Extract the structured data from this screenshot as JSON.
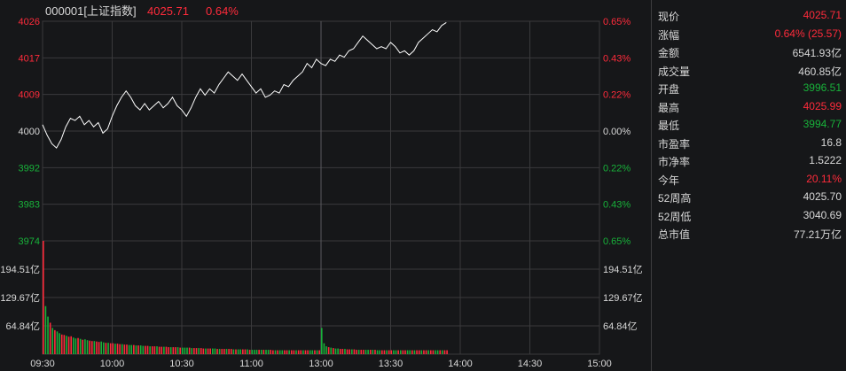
{
  "header": {
    "code_name": "000001[上证指数]",
    "price": "4025.71",
    "change_pct": "0.64%"
  },
  "colors": {
    "up": "#ff2b3b",
    "down": "#18b23a",
    "neutral": "#d8d8d8",
    "grid": "#3a3a3c",
    "line": "#ffffff"
  },
  "chart_data": {
    "type": "line",
    "price_axis": {
      "left_ticks": [
        "4026",
        "4017",
        "4009",
        "4000",
        "3992",
        "3983",
        "3974"
      ],
      "right_ticks": [
        "0.65%",
        "0.43%",
        "0.22%",
        "0.00%",
        "0.22%",
        "0.43%",
        "0.65%"
      ],
      "ylim": [
        3974,
        4026
      ],
      "prev_close": 4000
    },
    "volume_axis": {
      "ticks": [
        "194.51亿",
        "129.67亿",
        "64.84亿"
      ],
      "ylim": [
        0,
        259.35
      ]
    },
    "x_ticks": [
      "09:30",
      "10:00",
      "10:30",
      "11:00",
      "13:00",
      "13:30",
      "14:00",
      "14:30",
      "15:00"
    ],
    "session_minutes": 240,
    "price_series": [
      [
        0,
        4001.5
      ],
      [
        2,
        3999
      ],
      [
        4,
        3997
      ],
      [
        6,
        3996
      ],
      [
        8,
        3998
      ],
      [
        10,
        4001
      ],
      [
        12,
        4003
      ],
      [
        14,
        4002.5
      ],
      [
        16,
        4003.5
      ],
      [
        18,
        4001.5
      ],
      [
        20,
        4002.5
      ],
      [
        22,
        4001
      ],
      [
        24,
        4002
      ],
      [
        26,
        3999.5
      ],
      [
        28,
        4000.5
      ],
      [
        30,
        4003.5
      ],
      [
        32,
        4006
      ],
      [
        34,
        4008
      ],
      [
        36,
        4009.5
      ],
      [
        38,
        4008
      ],
      [
        40,
        4006
      ],
      [
        42,
        4005
      ],
      [
        44,
        4006.5
      ],
      [
        46,
        4005
      ],
      [
        48,
        4006
      ],
      [
        50,
        4007
      ],
      [
        52,
        4005.5
      ],
      [
        54,
        4006.5
      ],
      [
        56,
        4008
      ],
      [
        58,
        4006
      ],
      [
        60,
        4005
      ],
      [
        62,
        4003.5
      ],
      [
        64,
        4005.5
      ],
      [
        66,
        4008
      ],
      [
        68,
        4010
      ],
      [
        70,
        4008.5
      ],
      [
        72,
        4010
      ],
      [
        74,
        4009
      ],
      [
        76,
        4011
      ],
      [
        78,
        4012.5
      ],
      [
        80,
        4014
      ],
      [
        82,
        4013
      ],
      [
        84,
        4012
      ],
      [
        86,
        4013.5
      ],
      [
        88,
        4012
      ],
      [
        90,
        4010.5
      ],
      [
        92,
        4009
      ],
      [
        94,
        4010
      ],
      [
        96,
        4008
      ],
      [
        98,
        4008.5
      ],
      [
        100,
        4009.5
      ],
      [
        102,
        4009
      ],
      [
        104,
        4011
      ],
      [
        106,
        4010.5
      ],
      [
        108,
        4012
      ],
      [
        110,
        4013
      ],
      [
        112,
        4014
      ],
      [
        114,
        4016
      ],
      [
        116,
        4015
      ],
      [
        118,
        4017
      ],
      [
        120,
        4016
      ],
      [
        122,
        4015.5
      ],
      [
        124,
        4017
      ],
      [
        126,
        4016.5
      ],
      [
        128,
        4018
      ],
      [
        130,
        4017.5
      ],
      [
        132,
        4019
      ],
      [
        134,
        4019.5
      ],
      [
        136,
        4021
      ],
      [
        138,
        4022.5
      ],
      [
        140,
        4021.5
      ],
      [
        142,
        4020.5
      ],
      [
        144,
        4019.5
      ],
      [
        146,
        4020
      ],
      [
        148,
        4019.5
      ],
      [
        150,
        4021
      ],
      [
        152,
        4020
      ],
      [
        154,
        4018.5
      ],
      [
        156,
        4019
      ],
      [
        158,
        4018
      ],
      [
        160,
        4019
      ],
      [
        162,
        4021
      ],
      [
        164,
        4022
      ],
      [
        166,
        4023
      ],
      [
        168,
        4024
      ],
      [
        170,
        4023.5
      ],
      [
        172,
        4025
      ],
      [
        174,
        4025.7
      ]
    ],
    "volume_series": [
      [
        0,
        259.35
      ],
      [
        1,
        110
      ],
      [
        2,
        86
      ],
      [
        3,
        72
      ],
      [
        4,
        60
      ],
      [
        5,
        55
      ],
      [
        6,
        52
      ],
      [
        7,
        48
      ],
      [
        8,
        45
      ],
      [
        9,
        44
      ],
      [
        10,
        42
      ],
      [
        11,
        40
      ],
      [
        12,
        41
      ],
      [
        13,
        38
      ],
      [
        14,
        36
      ],
      [
        15,
        37
      ],
      [
        16,
        35
      ],
      [
        17,
        33
      ],
      [
        18,
        34
      ],
      [
        19,
        32
      ],
      [
        20,
        31
      ],
      [
        21,
        30
      ],
      [
        22,
        30
      ],
      [
        23,
        29
      ],
      [
        24,
        28
      ],
      [
        25,
        29
      ],
      [
        26,
        27
      ],
      [
        27,
        26
      ],
      [
        28,
        26
      ],
      [
        29,
        25
      ],
      [
        30,
        25
      ],
      [
        31,
        24
      ],
      [
        32,
        24
      ],
      [
        33,
        23
      ],
      [
        34,
        23
      ],
      [
        35,
        22
      ],
      [
        36,
        22
      ],
      [
        37,
        21
      ],
      [
        38,
        21
      ],
      [
        39,
        21
      ],
      [
        40,
        20
      ],
      [
        41,
        20
      ],
      [
        42,
        20
      ],
      [
        43,
        19
      ],
      [
        44,
        19
      ],
      [
        45,
        19
      ],
      [
        46,
        18
      ],
      [
        47,
        18
      ],
      [
        48,
        18
      ],
      [
        49,
        18
      ],
      [
        50,
        17
      ],
      [
        51,
        17
      ],
      [
        52,
        17
      ],
      [
        53,
        17
      ],
      [
        54,
        16
      ],
      [
        55,
        16
      ],
      [
        56,
        16
      ],
      [
        57,
        16
      ],
      [
        58,
        16
      ],
      [
        59,
        15
      ],
      [
        60,
        15
      ],
      [
        61,
        15
      ],
      [
        62,
        15
      ],
      [
        63,
        15
      ],
      [
        64,
        14
      ],
      [
        65,
        14
      ],
      [
        66,
        14
      ],
      [
        67,
        14
      ],
      [
        68,
        14
      ],
      [
        69,
        13
      ],
      [
        70,
        13
      ],
      [
        71,
        13
      ],
      [
        72,
        13
      ],
      [
        73,
        13
      ],
      [
        74,
        13
      ],
      [
        75,
        12
      ],
      [
        76,
        12
      ],
      [
        77,
        12
      ],
      [
        78,
        12
      ],
      [
        79,
        12
      ],
      [
        80,
        12
      ],
      [
        81,
        12
      ],
      [
        82,
        11
      ],
      [
        83,
        11
      ],
      [
        84,
        11
      ],
      [
        85,
        11
      ],
      [
        86,
        11
      ],
      [
        87,
        11
      ],
      [
        88,
        11
      ],
      [
        89,
        10
      ],
      [
        90,
        10
      ],
      [
        91,
        10
      ],
      [
        92,
        10
      ],
      [
        93,
        10
      ],
      [
        94,
        10
      ],
      [
        95,
        10
      ],
      [
        96,
        10
      ],
      [
        97,
        10
      ],
      [
        98,
        10
      ],
      [
        99,
        9
      ],
      [
        100,
        9
      ],
      [
        101,
        9
      ],
      [
        102,
        9
      ],
      [
        103,
        9
      ],
      [
        104,
        9
      ],
      [
        105,
        9
      ],
      [
        106,
        9
      ],
      [
        107,
        9
      ],
      [
        108,
        9
      ],
      [
        109,
        9
      ],
      [
        110,
        9
      ],
      [
        111,
        9
      ],
      [
        112,
        9
      ],
      [
        113,
        9
      ],
      [
        114,
        9
      ],
      [
        115,
        9
      ],
      [
        116,
        9
      ],
      [
        117,
        9
      ],
      [
        118,
        9
      ],
      [
        119,
        9
      ],
      [
        120,
        60
      ],
      [
        121,
        25
      ],
      [
        122,
        18
      ],
      [
        123,
        16
      ],
      [
        124,
        15
      ],
      [
        125,
        14
      ],
      [
        126,
        13
      ],
      [
        127,
        13
      ],
      [
        128,
        12
      ],
      [
        129,
        12
      ],
      [
        130,
        12
      ],
      [
        131,
        11
      ],
      [
        132,
        11
      ],
      [
        133,
        11
      ],
      [
        134,
        11
      ],
      [
        135,
        10
      ],
      [
        136,
        10
      ],
      [
        137,
        10
      ],
      [
        138,
        10
      ],
      [
        139,
        10
      ],
      [
        140,
        10
      ],
      [
        141,
        10
      ],
      [
        142,
        10
      ],
      [
        143,
        10
      ],
      [
        144,
        9
      ],
      [
        145,
        9
      ],
      [
        146,
        9
      ],
      [
        147,
        9
      ],
      [
        148,
        9
      ],
      [
        149,
        9
      ],
      [
        150,
        9
      ],
      [
        151,
        9
      ],
      [
        152,
        9
      ],
      [
        153,
        9
      ],
      [
        154,
        9
      ],
      [
        155,
        9
      ],
      [
        156,
        9
      ],
      [
        157,
        9
      ],
      [
        158,
        9
      ],
      [
        159,
        9
      ],
      [
        160,
        9
      ],
      [
        161,
        9
      ],
      [
        162,
        9
      ],
      [
        163,
        9
      ],
      [
        164,
        9
      ],
      [
        165,
        9
      ],
      [
        166,
        9
      ],
      [
        167,
        9
      ],
      [
        168,
        9
      ],
      [
        169,
        9
      ],
      [
        170,
        9
      ],
      [
        171,
        9
      ],
      [
        172,
        9
      ],
      [
        173,
        9
      ],
      [
        174,
        9
      ]
    ]
  },
  "quote": [
    {
      "label": "现价",
      "value": "4025.71",
      "tone": "up"
    },
    {
      "label": "涨幅",
      "value": "0.64% (25.57)",
      "tone": "up"
    },
    {
      "label": "金额",
      "value": "6541.93亿",
      "tone": "neutral"
    },
    {
      "label": "成交量",
      "value": "460.85亿",
      "tone": "neutral"
    },
    {
      "label": "开盘",
      "value": "3996.51",
      "tone": "down"
    },
    {
      "label": "最高",
      "value": "4025.99",
      "tone": "up"
    },
    {
      "label": "最低",
      "value": "3994.77",
      "tone": "down"
    },
    {
      "label": "市盈率",
      "value": "16.8",
      "tone": "neutral"
    },
    {
      "label": "市净率",
      "value": "1.5222",
      "tone": "neutral"
    },
    {
      "label": "今年",
      "value": "20.11%",
      "tone": "up"
    },
    {
      "label": "52周高",
      "value": "4025.70",
      "tone": "neutral"
    },
    {
      "label": "52周低",
      "value": "3040.69",
      "tone": "neutral"
    },
    {
      "label": "总市值",
      "value": "77.21万亿",
      "tone": "neutral"
    }
  ]
}
